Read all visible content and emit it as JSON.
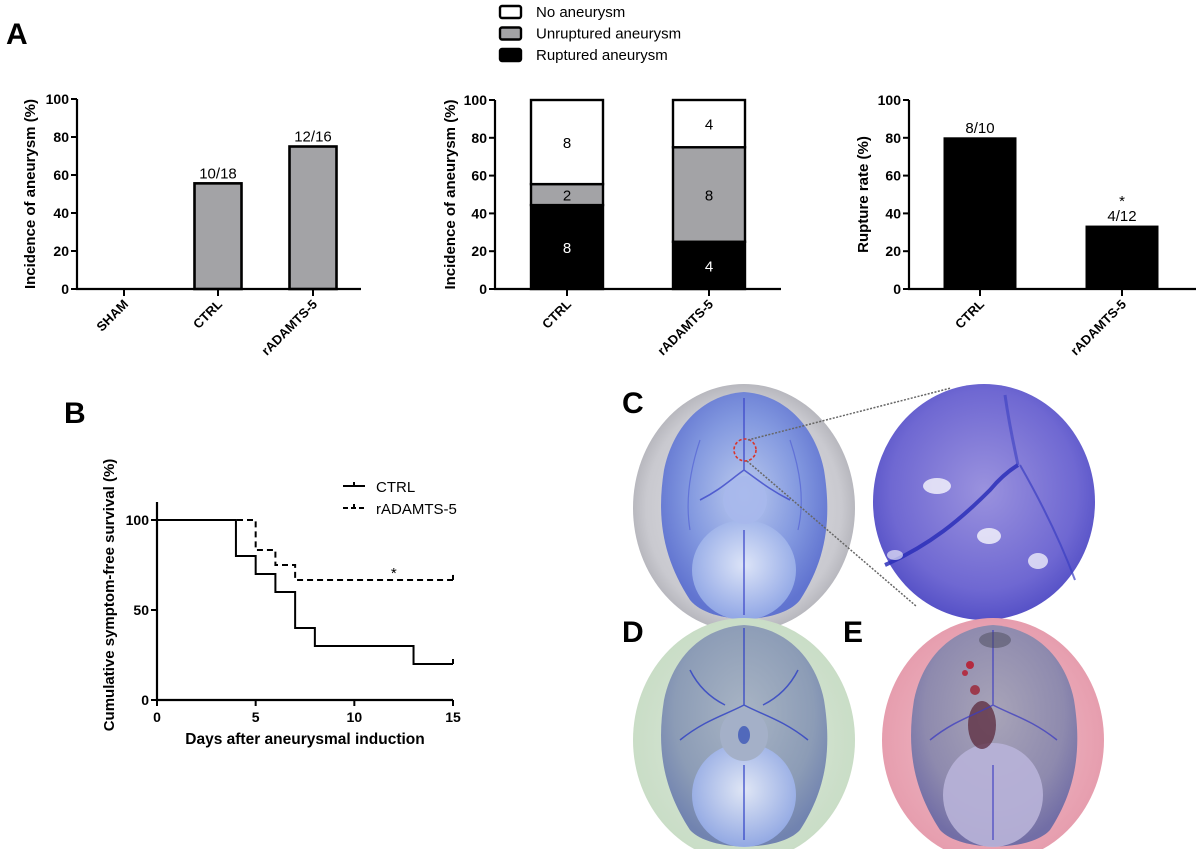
{
  "figure": {
    "panel_labels": [
      "A",
      "B",
      "C",
      "D",
      "E"
    ]
  },
  "colors": {
    "unruptured_gray": "#a3a3a6",
    "ruptured_black": "#000000",
    "no_aneurysm_white": "#ffffff",
    "highlight_circle": "#d9342b"
  },
  "chart_data": [
    {
      "id": "A1",
      "type": "bar",
      "title": "",
      "xlabel": "",
      "ylabel": "Incidence of aneurysm (%)",
      "ylim": [
        0,
        100
      ],
      "yticks": [
        0,
        20,
        40,
        60,
        80,
        100
      ],
      "categories": [
        "SHAM",
        "CTRL",
        "rADAMTS-5"
      ],
      "values": [
        0,
        55.6,
        75
      ],
      "annotations": [
        "",
        "10/18",
        "12/16"
      ],
      "bar_color": "#a3a3a6",
      "grid": false
    },
    {
      "id": "A2",
      "type": "bar",
      "stacked": true,
      "title": "",
      "xlabel": "",
      "ylabel": "Incidence of aneurysm (%)",
      "ylim": [
        0,
        100
      ],
      "yticks": [
        0,
        20,
        40,
        60,
        80,
        100
      ],
      "categories": [
        "CTRL",
        "rADAMTS-5"
      ],
      "series": [
        {
          "name": "Ruptured aneurysm",
          "color": "#000000",
          "text_color": "#ffffff",
          "values": [
            44.4,
            25
          ],
          "counts": [
            "8",
            "4"
          ]
        },
        {
          "name": "Unruptured aneurysm",
          "color": "#a3a3a6",
          "text_color": "#000000",
          "values": [
            11.1,
            50
          ],
          "counts": [
            "2",
            "8"
          ]
        },
        {
          "name": "No aneurysm",
          "color": "#ffffff",
          "text_color": "#000000",
          "values": [
            44.5,
            25
          ],
          "counts": [
            "8",
            "4"
          ]
        }
      ],
      "legend": {
        "placement": "top",
        "entries": [
          "No aneurysm",
          "Unruptured aneurysm",
          "Ruptured aneurysm"
        ]
      },
      "grid": false
    },
    {
      "id": "A3",
      "type": "bar",
      "title": "",
      "xlabel": "",
      "ylabel": "Rupture rate (%)",
      "ylim": [
        0,
        100
      ],
      "yticks": [
        0,
        20,
        40,
        60,
        80,
        100
      ],
      "categories": [
        "CTRL",
        "rADAMTS-5"
      ],
      "values": [
        80,
        33.3
      ],
      "annotations": [
        "8/10",
        "4/12"
      ],
      "significance": [
        "",
        "*"
      ],
      "bar_color": "#000000",
      "grid": false
    },
    {
      "id": "B",
      "type": "line",
      "step": true,
      "title": "",
      "xlabel": "Days after aneurysmal induction",
      "ylabel": "Cumulative symptom-free survival (%)",
      "xlim": [
        0,
        15
      ],
      "ylim": [
        0,
        110
      ],
      "xticks": [
        0,
        5,
        10,
        15
      ],
      "yticks": [
        0,
        50,
        100
      ],
      "series": [
        {
          "name": "CTRL",
          "dash": false,
          "x": [
            0,
            4,
            5,
            6,
            7,
            8,
            13,
            15
          ],
          "y": [
            100,
            80,
            70,
            60,
            40,
            30,
            20,
            20
          ]
        },
        {
          "name": "rADAMTS-5",
          "dash": true,
          "x": [
            0,
            5,
            6,
            7,
            15
          ],
          "y": [
            100,
            83.3,
            75,
            66.7,
            66.7
          ]
        }
      ],
      "annotations": [
        {
          "text": "*",
          "x": 12,
          "y": 66.7
        }
      ],
      "legend": {
        "placement": "top-right",
        "entries": [
          "CTRL",
          "rADAMTS-5"
        ]
      },
      "grid": false
    }
  ],
  "images": {
    "C": {
      "description": "Brain ventral view with blue dye, red dashed circle marks aneurysm site",
      "inset": "Magnified view of circled region"
    },
    "D": {
      "description": "Brain ventral view without aneurysm"
    },
    "E": {
      "description": "Brain ventral view with ruptured aneurysm and hemorrhage"
    }
  }
}
